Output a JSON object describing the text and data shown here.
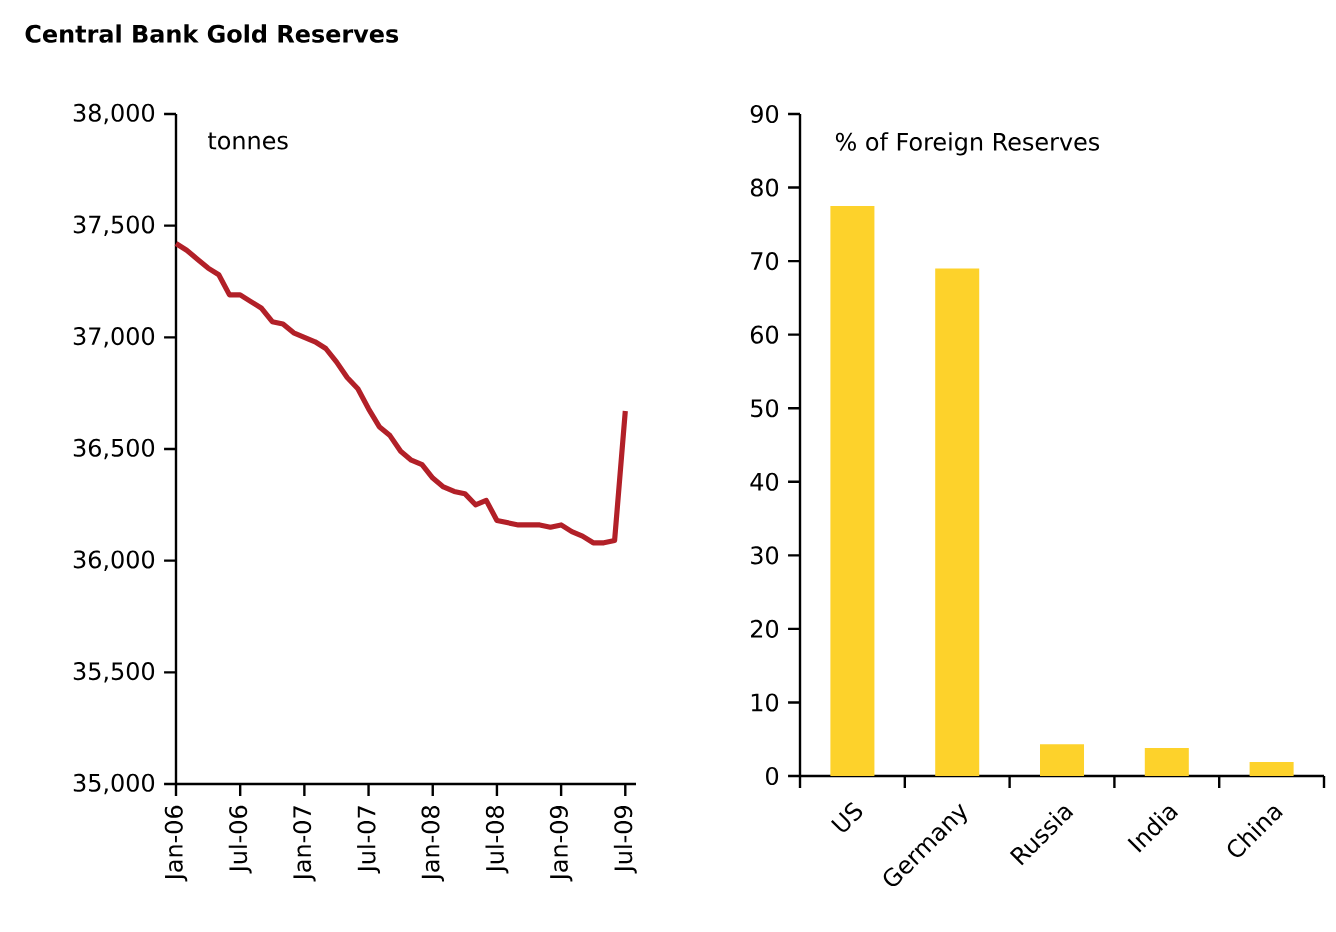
{
  "chart_data": [
    {
      "type": "line",
      "title": "Central Bank Gold Reserves",
      "ylabel": "tonnes",
      "x": [
        "2006-01",
        "2006-02",
        "2006-03",
        "2006-04",
        "2006-05",
        "2006-06",
        "2006-07",
        "2006-08",
        "2006-09",
        "2006-10",
        "2006-11",
        "2006-12",
        "2007-01",
        "2007-02",
        "2007-03",
        "2007-04",
        "2007-05",
        "2007-06",
        "2007-07",
        "2007-08",
        "2007-09",
        "2007-10",
        "2007-11",
        "2007-12",
        "2008-01",
        "2008-02",
        "2008-03",
        "2008-04",
        "2008-05",
        "2008-06",
        "2008-07",
        "2008-08",
        "2008-09",
        "2008-10",
        "2008-11",
        "2008-12",
        "2009-01",
        "2009-02",
        "2009-03",
        "2009-04",
        "2009-05",
        "2009-06",
        "2009-07"
      ],
      "series": [
        {
          "color": "#b22028",
          "values": [
            37420,
            37390,
            37350,
            37310,
            37280,
            37190,
            37190,
            37160,
            37130,
            37070,
            37060,
            37020,
            37000,
            36980,
            36950,
            36890,
            36820,
            36770,
            36680,
            36600,
            36560,
            36490,
            36450,
            36430,
            36370,
            36330,
            36310,
            36300,
            36250,
            36270,
            36180,
            36170,
            36160,
            36160,
            36160,
            36150,
            36160,
            36130,
            36110,
            36080,
            36080,
            36090,
            36670
          ]
        }
      ],
      "xlim": [
        "2006-01",
        "2009-08"
      ],
      "xticks": [
        {
          "value": "2006-01",
          "label": "Jan-06"
        },
        {
          "value": "2006-07",
          "label": "Jul-06"
        },
        {
          "value": "2007-01",
          "label": "Jan-07"
        },
        {
          "value": "2007-07",
          "label": "Jul-07"
        },
        {
          "value": "2008-01",
          "label": "Jan-08"
        },
        {
          "value": "2008-07",
          "label": "Jul-08"
        },
        {
          "value": "2009-01",
          "label": "Jan-09"
        },
        {
          "value": "2009-07",
          "label": "Jul-09"
        }
      ],
      "ylim": [
        35000,
        38000
      ],
      "yticks": [
        {
          "value": 35000,
          "label": "35,000"
        },
        {
          "value": 35500,
          "label": "35,500"
        },
        {
          "value": 36000,
          "label": "36,000"
        },
        {
          "value": 36500,
          "label": "36,500"
        },
        {
          "value": 37000,
          "label": "37,000"
        },
        {
          "value": 37500,
          "label": "37,500"
        },
        {
          "value": 38000,
          "label": "38,000"
        }
      ]
    },
    {
      "type": "bar",
      "ylabel": "% of Foreign Reserves",
      "categories": [
        "US",
        "Germany",
        "Russia",
        "India",
        "China"
      ],
      "values": [
        77.5,
        69,
        4.3,
        3.8,
        1.9
      ],
      "color": "#fdd22b",
      "ylim": [
        0,
        90
      ],
      "yticks": [
        0,
        10,
        20,
        30,
        40,
        50,
        60,
        70,
        80,
        90
      ]
    }
  ]
}
